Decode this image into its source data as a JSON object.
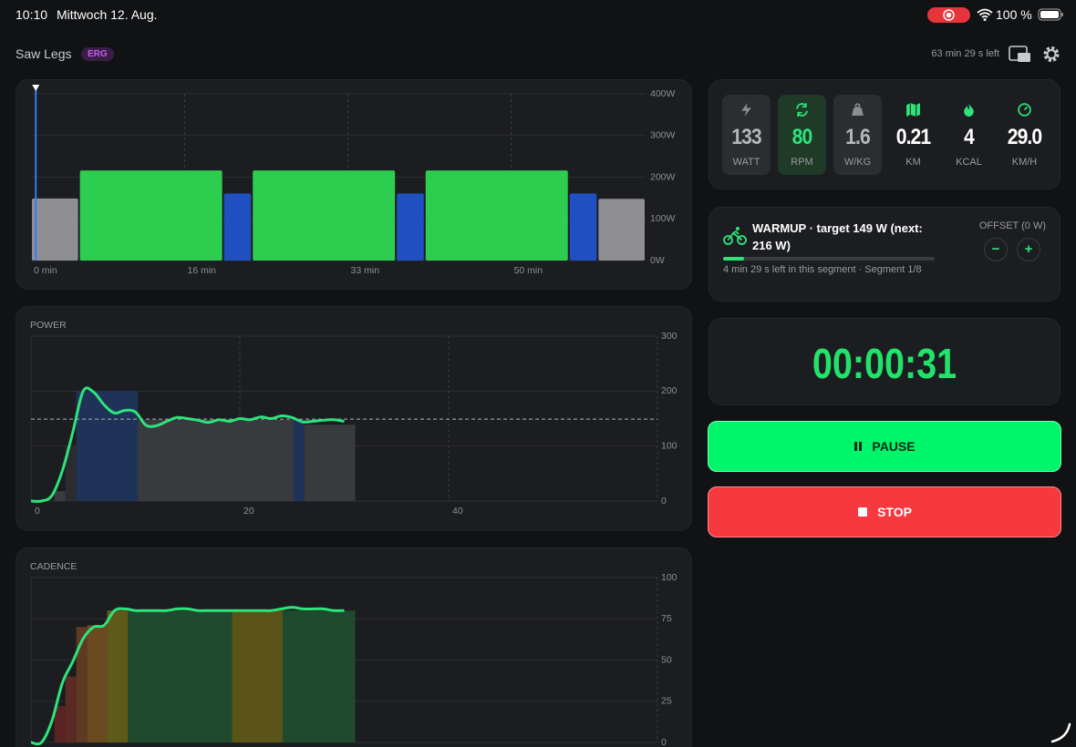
{
  "status_bar": {
    "time": "10:10",
    "date": "Mittwoch 12. Aug.",
    "battery": "100 %"
  },
  "header": {
    "title": "Saw Legs",
    "mode": "ERG",
    "time_left": "63 min 29 s left"
  },
  "chart_data": [
    {
      "type": "bar",
      "xlim": [
        0,
        64
      ],
      "ylim": [
        0,
        400
      ],
      "xticks": [
        {
          "value": 0,
          "label": "0 min"
        },
        {
          "value": 16,
          "label": "16 min"
        },
        {
          "value": 33,
          "label": "33 min"
        },
        {
          "value": 50,
          "label": "50 min"
        }
      ],
      "yticks": [
        {
          "value": 0,
          "label": "0W"
        },
        {
          "value": 100,
          "label": "100W"
        },
        {
          "value": 200,
          "label": "200W"
        },
        {
          "value": 300,
          "label": "300W"
        },
        {
          "value": 400,
          "label": "400W"
        }
      ],
      "position": 0.5,
      "segments": [
        {
          "start": 0,
          "end": 5,
          "value": 149,
          "color": "#8e8e93"
        },
        {
          "start": 5,
          "end": 20,
          "value": 216,
          "color": "#2dcd4f"
        },
        {
          "start": 20,
          "end": 23,
          "value": 161,
          "color": "#1f4fc1"
        },
        {
          "start": 23,
          "end": 38,
          "value": 216,
          "color": "#2dcd4f"
        },
        {
          "start": 38,
          "end": 41,
          "value": 161,
          "color": "#1f4fc1"
        },
        {
          "start": 41,
          "end": 56,
          "value": 216,
          "color": "#2dcd4f"
        },
        {
          "start": 56,
          "end": 59,
          "value": 161,
          "color": "#1f4fc1"
        },
        {
          "start": 59,
          "end": 64,
          "value": 148,
          "color": "#8e8e93"
        }
      ]
    },
    {
      "type": "line",
      "title": "POWER",
      "xlim": [
        0,
        60
      ],
      "xticks": [
        0,
        20,
        40
      ],
      "ylim": [
        0,
        300
      ],
      "yticks": [
        0,
        100,
        200,
        300
      ],
      "target": 149,
      "color": "#2de37a",
      "x": [
        0,
        1,
        2,
        3,
        4,
        5,
        6,
        7,
        8,
        9,
        10,
        11,
        12,
        13,
        14,
        15,
        16,
        17,
        18,
        19,
        20,
        21,
        22,
        23,
        24,
        25,
        26,
        27,
        28,
        29,
        30
      ],
      "values": [
        0,
        0,
        10,
        55,
        125,
        200,
        198,
        175,
        160,
        165,
        162,
        138,
        137,
        145,
        152,
        150,
        147,
        143,
        148,
        145,
        150,
        148,
        153,
        150,
        155,
        152,
        144,
        145,
        147,
        148,
        145
      ],
      "zones": [
        {
          "start": 2.25,
          "end": 3.3,
          "value": 18,
          "color": "#3a3b3f"
        },
        {
          "start": 3.3,
          "end": 4.34,
          "value": 100,
          "color": "#2b2c2f"
        },
        {
          "start": 4.34,
          "end": 10.23,
          "value": 200,
          "color": "#1f3358"
        },
        {
          "start": 10.23,
          "end": 25.15,
          "value": 148,
          "color": "#393a3e"
        },
        {
          "start": 25.15,
          "end": 26.19,
          "value": 148,
          "color": "#1f3358"
        },
        {
          "start": 26.19,
          "end": 31.05,
          "value": 139,
          "color": "#393a3e"
        }
      ]
    },
    {
      "type": "line",
      "title": "CADENCE",
      "xlim": [
        0,
        60
      ],
      "ylim": [
        0,
        100
      ],
      "yticks": [
        0,
        25,
        50,
        75,
        100
      ],
      "color": "#2de37a",
      "x": [
        0,
        1,
        2,
        3,
        4,
        5,
        6,
        7,
        8,
        9,
        10,
        11,
        12,
        13,
        14,
        15,
        16,
        17,
        18,
        19,
        20,
        21,
        22,
        23,
        24,
        25,
        26,
        27,
        28,
        29,
        30
      ],
      "values": [
        0,
        0,
        13,
        36,
        49,
        63,
        70,
        71,
        80,
        81,
        80,
        80,
        80,
        80,
        81,
        81,
        80,
        80,
        80,
        80,
        80,
        80,
        80,
        80,
        81,
        82,
        81,
        81,
        81,
        80,
        80
      ],
      "zones": [
        {
          "start": 2.25,
          "end": 3.3,
          "value": 22,
          "color": "#5a2323"
        },
        {
          "start": 3.3,
          "end": 4.34,
          "value": 40,
          "color": "#5c2a24"
        },
        {
          "start": 4.34,
          "end": 5.38,
          "value": 70,
          "color": "#5e3a22"
        },
        {
          "start": 5.38,
          "end": 7.29,
          "value": 71,
          "color": "#6b4a1f"
        },
        {
          "start": 7.29,
          "end": 9.28,
          "value": 80,
          "color": "#5f5a1a"
        },
        {
          "start": 9.28,
          "end": 19.25,
          "value": 80,
          "color": "#1f4a2d"
        },
        {
          "start": 19.25,
          "end": 24.1,
          "value": 80,
          "color": "#5b5418"
        },
        {
          "start": 24.1,
          "end": 31.05,
          "value": 80,
          "color": "#1f4a2d"
        }
      ]
    }
  ],
  "metrics": [
    {
      "value": "133",
      "label": "WATT"
    },
    {
      "value": "80",
      "label": "RPM"
    },
    {
      "value": "1.6",
      "label": "W/KG"
    },
    {
      "value": "0.21",
      "label": "KM"
    },
    {
      "value": "4",
      "label": "KCAL"
    },
    {
      "value": "29.0",
      "label": "KM/H"
    }
  ],
  "segment": {
    "title": "WARMUP · target 149 W (next: 216 W)",
    "detail": "4 min 29 s left in this segment · Segment 1/8",
    "offset": "OFFSET (0 W)",
    "minus": "−",
    "plus": "+",
    "progress": 0.1
  },
  "timer": "00:00:31",
  "controls": {
    "pause": "PAUSE",
    "stop": "STOP"
  }
}
